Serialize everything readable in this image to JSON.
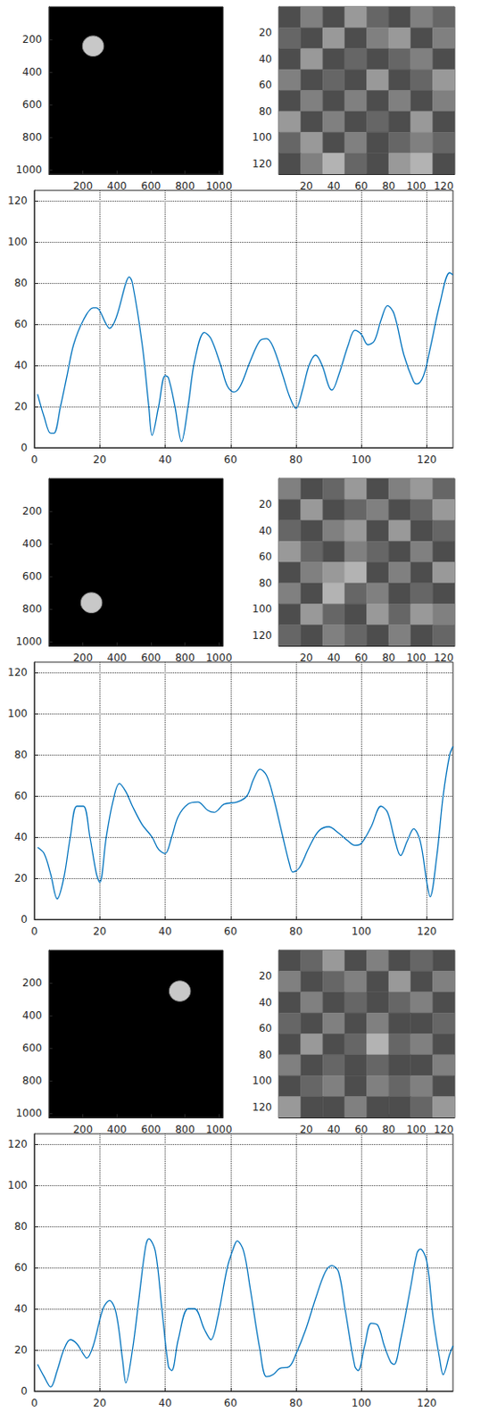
{
  "chart_data": [
    {
      "type": "image",
      "xlim": [
        0,
        1024
      ],
      "ylim": [
        0,
        1024
      ],
      "xticks": [
        200,
        400,
        600,
        800,
        1000
      ],
      "yticks": [
        200,
        400,
        600,
        800,
        1000
      ],
      "circle": {
        "x": 260,
        "y": 240,
        "r": 62
      },
      "color": "#c8c8c8"
    },
    {
      "type": "heatmap",
      "xlim": [
        0,
        128
      ],
      "ylim": [
        0,
        128
      ],
      "xticks": [
        20,
        40,
        60,
        80,
        100,
        120
      ],
      "yticks": [
        20,
        40,
        60,
        80,
        100,
        120
      ],
      "color_range": [
        0,
        1
      ],
      "cells": [
        [
          0.3,
          0.5,
          0.3,
          0.6,
          0.4,
          0.3,
          0.5,
          0.4
        ],
        [
          0.4,
          0.3,
          0.6,
          0.3,
          0.5,
          0.6,
          0.3,
          0.5
        ],
        [
          0.3,
          0.6,
          0.3,
          0.4,
          0.3,
          0.4,
          0.5,
          0.3
        ],
        [
          0.5,
          0.3,
          0.4,
          0.3,
          0.6,
          0.3,
          0.4,
          0.6
        ],
        [
          0.3,
          0.5,
          0.3,
          0.5,
          0.3,
          0.5,
          0.3,
          0.5
        ],
        [
          0.6,
          0.3,
          0.5,
          0.3,
          0.4,
          0.3,
          0.6,
          0.3
        ],
        [
          0.4,
          0.6,
          0.3,
          0.5,
          0.3,
          0.4,
          0.5,
          0.4
        ],
        [
          0.3,
          0.5,
          0.7,
          0.4,
          0.3,
          0.6,
          0.7,
          0.3
        ]
      ]
    },
    {
      "type": "line",
      "xlim": [
        0,
        128
      ],
      "ylim": [
        0,
        125
      ],
      "xticks": [
        0,
        20,
        40,
        60,
        80,
        100,
        120
      ],
      "yticks": [
        0,
        20,
        40,
        60,
        80,
        100,
        120
      ],
      "grid": true,
      "color": "#0072bd",
      "x": [
        1,
        3,
        5,
        6,
        8,
        10,
        12,
        15,
        18,
        19,
        22,
        23,
        25,
        28,
        29,
        30,
        33,
        35,
        36,
        38,
        40,
        41,
        43,
        45,
        47,
        49,
        52,
        54,
        57,
        59,
        61,
        63,
        66,
        69,
        71,
        73,
        76,
        78,
        80,
        82,
        84,
        86,
        88,
        90,
        91,
        93,
        96,
        98,
        100,
        102,
        104,
        106,
        108,
        110,
        113,
        116,
        117,
        119,
        121,
        124,
        127,
        128
      ],
      "values": [
        26,
        15,
        7,
        7,
        20,
        35,
        50,
        62,
        68,
        68,
        60,
        58,
        63,
        80,
        83,
        80,
        50,
        20,
        6,
        20,
        35,
        34,
        20,
        3,
        20,
        42,
        56,
        53,
        40,
        30,
        27,
        30,
        42,
        52,
        53,
        49,
        35,
        25,
        19,
        28,
        40,
        45,
        40,
        30,
        28,
        35,
        50,
        57,
        55,
        50,
        52,
        62,
        69,
        65,
        45,
        32,
        31,
        35,
        48,
        70,
        85,
        84
      ]
    },
    {
      "type": "image",
      "xlim": [
        0,
        1024
      ],
      "ylim": [
        0,
        1024
      ],
      "xticks": [
        200,
        400,
        600,
        800,
        1000
      ],
      "yticks": [
        200,
        400,
        600,
        800,
        1000
      ],
      "circle": {
        "x": 250,
        "y": 760,
        "r": 62
      },
      "color": "#c8c8c8"
    },
    {
      "type": "heatmap",
      "xlim": [
        0,
        128
      ],
      "ylim": [
        0,
        128
      ],
      "xticks": [
        20,
        40,
        60,
        80,
        100,
        120
      ],
      "yticks": [
        20,
        40,
        60,
        80,
        100,
        120
      ],
      "color_range": [
        0,
        1
      ],
      "cells": [
        [
          0.5,
          0.3,
          0.4,
          0.6,
          0.3,
          0.5,
          0.6,
          0.4
        ],
        [
          0.3,
          0.6,
          0.3,
          0.4,
          0.5,
          0.3,
          0.4,
          0.6
        ],
        [
          0.4,
          0.3,
          0.5,
          0.6,
          0.3,
          0.6,
          0.3,
          0.4
        ],
        [
          0.6,
          0.4,
          0.3,
          0.5,
          0.4,
          0.3,
          0.5,
          0.3
        ],
        [
          0.3,
          0.5,
          0.6,
          0.7,
          0.3,
          0.5,
          0.3,
          0.6
        ],
        [
          0.5,
          0.3,
          0.7,
          0.4,
          0.5,
          0.3,
          0.4,
          0.3
        ],
        [
          0.3,
          0.6,
          0.4,
          0.3,
          0.6,
          0.4,
          0.6,
          0.5
        ],
        [
          0.4,
          0.3,
          0.5,
          0.4,
          0.3,
          0.5,
          0.3,
          0.4
        ]
      ]
    },
    {
      "type": "line",
      "xlim": [
        0,
        128
      ],
      "ylim": [
        0,
        125
      ],
      "xticks": [
        0,
        20,
        40,
        60,
        80,
        100,
        120
      ],
      "yticks": [
        0,
        20,
        40,
        60,
        80,
        100,
        120
      ],
      "grid": true,
      "color": "#0072bd",
      "x": [
        1,
        3,
        5,
        7,
        9,
        11,
        13,
        15,
        17,
        19,
        20,
        22,
        24,
        26,
        28,
        30,
        33,
        36,
        38,
        40,
        42,
        44,
        47,
        50,
        53,
        55,
        58,
        62,
        65,
        67,
        69,
        71,
        73,
        76,
        78,
        79,
        81,
        84,
        87,
        90,
        93,
        96,
        98,
        100,
        103,
        106,
        108,
        110,
        112,
        114,
        116,
        118,
        120,
        121,
        123,
        125,
        127,
        128
      ],
      "values": [
        35,
        32,
        22,
        10,
        20,
        40,
        55,
        55,
        40,
        22,
        18,
        40,
        57,
        66,
        62,
        55,
        46,
        40,
        34,
        32,
        40,
        50,
        56,
        57,
        53,
        52,
        56,
        57,
        60,
        68,
        73,
        70,
        60,
        40,
        27,
        23,
        25,
        35,
        43,
        45,
        42,
        38,
        36,
        37,
        45,
        55,
        52,
        40,
        31,
        38,
        44,
        38,
        18,
        11,
        30,
        60,
        80,
        84
      ]
    },
    {
      "type": "image",
      "xlim": [
        0,
        1024
      ],
      "ylim": [
        0,
        1024
      ],
      "xticks": [
        200,
        400,
        600,
        800,
        1000
      ],
      "yticks": [
        200,
        400,
        600,
        800,
        1000
      ],
      "circle": {
        "x": 770,
        "y": 250,
        "r": 62
      },
      "color": "#c8c8c8"
    },
    {
      "type": "heatmap",
      "xlim": [
        0,
        128
      ],
      "ylim": [
        0,
        128
      ],
      "xticks": [
        20,
        40,
        60,
        80,
        100,
        120
      ],
      "yticks": [
        20,
        40,
        60,
        80,
        100,
        120
      ],
      "color_range": [
        0,
        1
      ],
      "cells": [
        [
          0.3,
          0.4,
          0.6,
          0.3,
          0.5,
          0.3,
          0.4,
          0.3
        ],
        [
          0.5,
          0.3,
          0.4,
          0.5,
          0.3,
          0.6,
          0.3,
          0.5
        ],
        [
          0.3,
          0.5,
          0.3,
          0.4,
          0.3,
          0.4,
          0.5,
          0.3
        ],
        [
          0.4,
          0.3,
          0.5,
          0.3,
          0.5,
          0.3,
          0.3,
          0.4
        ],
        [
          0.3,
          0.6,
          0.3,
          0.4,
          0.7,
          0.4,
          0.5,
          0.3
        ],
        [
          0.5,
          0.3,
          0.4,
          0.3,
          0.4,
          0.3,
          0.3,
          0.5
        ],
        [
          0.3,
          0.4,
          0.5,
          0.3,
          0.5,
          0.4,
          0.5,
          0.3
        ],
        [
          0.6,
          0.3,
          0.3,
          0.5,
          0.3,
          0.3,
          0.4,
          0.6
        ]
      ]
    },
    {
      "type": "line",
      "xlim": [
        0,
        128
      ],
      "ylim": [
        0,
        125
      ],
      "xticks": [
        0,
        20,
        40,
        60,
        80,
        100,
        120
      ],
      "yticks": [
        0,
        20,
        40,
        60,
        80,
        100,
        120
      ],
      "grid": true,
      "color": "#0072bd",
      "x": [
        1,
        3,
        5,
        7,
        9,
        11,
        13,
        15,
        16,
        18,
        21,
        23,
        25,
        27,
        28,
        30,
        32,
        34,
        35,
        37,
        39,
        41,
        42,
        44,
        47,
        49,
        52,
        54,
        56,
        59,
        61,
        62,
        64,
        66,
        69,
        71,
        73,
        75,
        78,
        80,
        83,
        86,
        89,
        91,
        93,
        95,
        98,
        99,
        101,
        103,
        105,
        107,
        109,
        110,
        112,
        115,
        117,
        118,
        120,
        122,
        124,
        125,
        127,
        128
      ],
      "values": [
        13,
        7,
        2,
        10,
        20,
        25,
        23,
        18,
        16,
        22,
        40,
        44,
        38,
        15,
        4,
        20,
        45,
        70,
        74,
        68,
        40,
        12,
        10,
        25,
        40,
        40,
        30,
        25,
        35,
        60,
        70,
        73,
        68,
        50,
        20,
        7,
        8,
        11,
        12,
        18,
        30,
        45,
        58,
        61,
        58,
        40,
        12,
        10,
        22,
        33,
        32,
        22,
        14,
        13,
        25,
        50,
        67,
        69,
        63,
        35,
        15,
        8,
        18,
        22
      ]
    }
  ]
}
